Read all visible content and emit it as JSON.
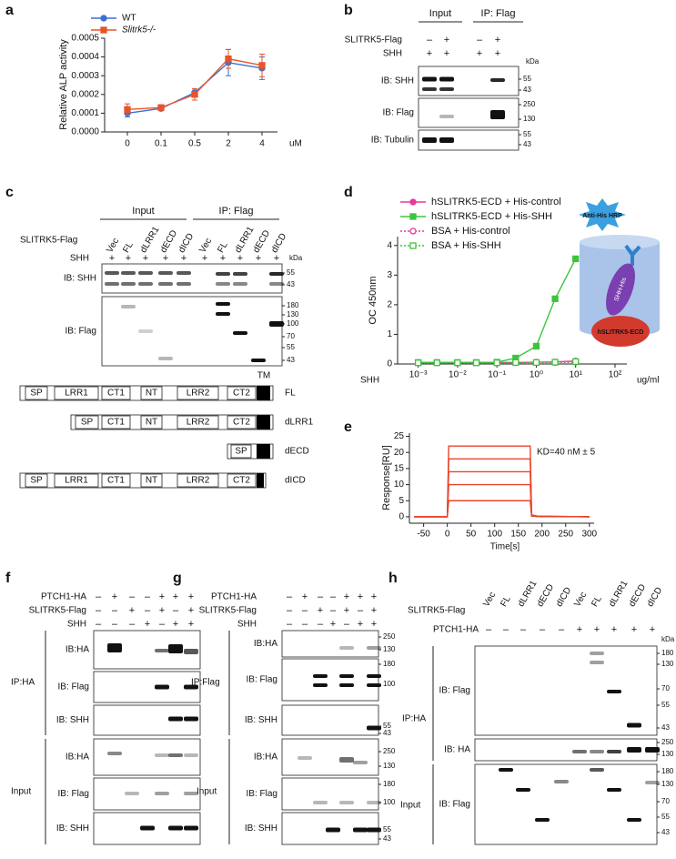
{
  "panel_labels": [
    "a",
    "b",
    "c",
    "d",
    "e",
    "f",
    "g",
    "h"
  ],
  "chart_data": [
    {
      "type": "line",
      "y_label": "Relative ALP activity",
      "x_label": "uM",
      "categories": [
        "0",
        "0.1",
        "0.5",
        "2",
        "4"
      ],
      "series": [
        {
          "name": "WT",
          "color": "#3b6fd4",
          "marker": "circle",
          "values": [
            0.0001,
            0.000125,
            0.00021,
            0.00037,
            0.00034
          ],
          "errors": [
            2e-05,
            1e-05,
            2e-05,
            7e-05,
            6e-05
          ]
        },
        {
          "name": "Slitrk5-/-",
          "color": "#e8542a",
          "marker": "square",
          "values": [
            0.00012,
            0.00013,
            0.0002,
            0.00039,
            0.000355
          ],
          "errors": [
            3e-05,
            1e-05,
            3e-05,
            5e-05,
            6e-05
          ]
        }
      ],
      "ylim": [
        0,
        0.0005
      ],
      "yticks": [
        {
          "value": 0,
          "label": "0.0000"
        },
        {
          "value": 0.0001,
          "label": "0.0001"
        },
        {
          "value": 0.0002,
          "label": "0.0002"
        },
        {
          "value": 0.0003,
          "label": "0.0003"
        },
        {
          "value": 0.0004,
          "label": "0.0004"
        },
        {
          "value": 0.0005,
          "label": "0.0005"
        }
      ],
      "legend": "upper left"
    },
    {
      "type": "line",
      "x_label": "SHH",
      "x_unit": "ug/ml",
      "y_label": "OC 450nm",
      "xscale": "log",
      "x": [
        0.001,
        0.003,
        0.01,
        0.03,
        0.1,
        0.3,
        1,
        3,
        10
      ],
      "series": [
        {
          "name": "hSLITRK5-ECD + His-control",
          "color": "#e8389a",
          "marker": "circle",
          "filled": true,
          "dotted": false,
          "values": [
            0.05,
            0.05,
            0.05,
            0.05,
            0.05,
            0.05,
            0.06,
            0.07,
            0.1
          ]
        },
        {
          "name": "hSLITRK5-ECD + His-SHH",
          "color": "#3cc43c",
          "marker": "square",
          "filled": true,
          "dotted": false,
          "values": [
            0.05,
            0.05,
            0.05,
            0.05,
            0.06,
            0.2,
            0.6,
            2.2,
            3.55
          ]
        },
        {
          "name": "BSA + His-control",
          "color": "#e8389a",
          "marker": "circle",
          "filled": false,
          "dotted": true,
          "values": [
            0.04,
            0.04,
            0.04,
            0.04,
            0.04,
            0.04,
            0.05,
            0.05,
            0.06
          ]
        },
        {
          "name": "BSA + His-SHH",
          "color": "#3cc43c",
          "marker": "square",
          "filled": false,
          "dotted": true,
          "values": [
            0.04,
            0.04,
            0.04,
            0.04,
            0.04,
            0.05,
            0.05,
            0.06,
            0.08
          ]
        }
      ],
      "xlim": [
        0.0003,
        200
      ],
      "xticks": [
        {
          "value": 0.001,
          "label": "10⁻³"
        },
        {
          "value": 0.01,
          "label": "10⁻²"
        },
        {
          "value": 0.1,
          "label": "10⁻¹"
        },
        {
          "value": 1,
          "label": "10⁰"
        },
        {
          "value": 10,
          "label": "10¹"
        },
        {
          "value": 100,
          "label": "10²"
        }
      ],
      "ylim": [
        0,
        4.3
      ],
      "yticks": [
        0,
        1,
        2,
        3,
        4
      ],
      "legend": "upper left"
    },
    {
      "type": "line",
      "x_label": "Time[s]",
      "y_label": "Response[RU]",
      "annotation": "KD=40 nM ± 5",
      "x": [
        -70,
        0,
        3,
        175,
        178,
        190,
        300
      ],
      "series": [
        {
          "color": "#e8452c",
          "values": [
            0,
            0,
            22,
            22,
            0.6,
            0.2,
            0
          ]
        },
        {
          "color": "#e8452c",
          "values": [
            0,
            0,
            18,
            18,
            0.5,
            0.2,
            0
          ]
        },
        {
          "color": "#e8452c",
          "values": [
            0,
            0,
            14,
            14,
            0.4,
            0.1,
            0
          ]
        },
        {
          "color": "#e8452c",
          "values": [
            0,
            0,
            10,
            10,
            0.3,
            0.1,
            0
          ]
        },
        {
          "color": "#e8452c",
          "values": [
            0,
            0,
            5,
            5,
            0.2,
            0.1,
            0
          ]
        }
      ],
      "xlim": [
        -80,
        310
      ],
      "xticks": [
        -50,
        0,
        50,
        100,
        150,
        200,
        250,
        300
      ],
      "ylim": [
        -2,
        26
      ],
      "yticks": [
        0,
        5,
        10,
        15,
        20,
        25
      ]
    }
  ],
  "blot_b": {
    "groups": [
      "Input",
      "IP: Flag"
    ],
    "rows": [
      {
        "label": "SLITRK5-Flag",
        "marks": [
          "–",
          "+",
          "–",
          "+"
        ]
      },
      {
        "label": "SHH",
        "marks": [
          "+",
          "+",
          "+",
          "+"
        ]
      }
    ],
    "kda_label": "kDa",
    "sections": [
      {
        "blots": [
          {
            "label": "IB: SHH",
            "kda": [
              55,
              43
            ]
          },
          {
            "label": "IB: Flag",
            "kda": [
              250,
              130
            ]
          },
          {
            "label": "IB: Tubulin",
            "kda": [
              55,
              43
            ]
          }
        ]
      }
    ]
  },
  "blot_c": {
    "groups": [
      "Input",
      "IP: Flag"
    ],
    "lane_label": "SLITRK5-Flag",
    "lanes": [
      "Vec",
      "FL",
      "dLRR1",
      "dECD",
      "dICD",
      "Vec",
      "FL",
      "dLRR1",
      "dECD",
      "dICD"
    ],
    "rows": [
      {
        "label": "SHH",
        "marks": [
          "+",
          "+",
          "+",
          "+",
          "+",
          "+",
          "+",
          "+",
          "+",
          "+"
        ]
      }
    ],
    "kda_label": "kDa",
    "sections": [
      {
        "blots": [
          {
            "label": "IB: SHH",
            "kda": [
              55,
              43
            ]
          },
          {
            "label": "IB: Flag",
            "kda": [
              180,
              130,
              100,
              70,
              55,
              43
            ]
          }
        ]
      }
    ]
  },
  "domains": {
    "tm": "TM",
    "constructs": [
      {
        "name": "FL",
        "segments": [
          "SP",
          "LRR1",
          "CT1",
          "NT",
          "LRR2",
          "CT2"
        ]
      },
      {
        "name": "dLRR1",
        "segments": [
          "SP",
          "CT1",
          "NT",
          "LRR2",
          "CT2"
        ]
      },
      {
        "name": "dECD",
        "segments": [
          "SP"
        ]
      },
      {
        "name": "dICD",
        "segments": [
          "SP",
          "LRR1",
          "CT1",
          "NT",
          "LRR2",
          "CT2"
        ]
      }
    ]
  },
  "diagram_d": {
    "antibody": "Anti-His HRP",
    "ligand": "SHH-His",
    "receptor": "hSLITRK5-ECD"
  },
  "blot_f": {
    "rows": [
      {
        "label": "PTCH1-HA",
        "marks": [
          "–",
          "+",
          "–",
          "–",
          "+",
          "+",
          "+"
        ]
      },
      {
        "label": "SLITRK5-Flag",
        "marks": [
          "–",
          "–",
          "+",
          "–",
          "+",
          "–",
          "+"
        ]
      },
      {
        "label": "SHH",
        "marks": [
          "–",
          "–",
          "–",
          "+",
          "–",
          "+",
          "+"
        ]
      }
    ],
    "sections": [
      {
        "label": "IP:HA",
        "blots": [
          {
            "label": "IB:HA"
          },
          {
            "label": "IB: Flag"
          },
          {
            "label": "IB: SHH"
          }
        ]
      },
      {
        "label": "Input",
        "blots": [
          {
            "label": "IB:HA"
          },
          {
            "label": "IB: Flag"
          },
          {
            "label": "IB: SHH"
          }
        ]
      }
    ]
  },
  "blot_g": {
    "rows": [
      {
        "label": "PTCH1-HA",
        "marks": [
          "–",
          "+",
          "–",
          "–",
          "+",
          "+",
          "+"
        ]
      },
      {
        "label": "SLITRK5-Flag",
        "marks": [
          "–",
          "–",
          "+",
          "–",
          "+",
          "–",
          "+"
        ]
      },
      {
        "label": "SHH",
        "marks": [
          "–",
          "–",
          "–",
          "+",
          "–",
          "+",
          "+"
        ]
      }
    ],
    "sections": [
      {
        "label": "IP:Flag",
        "blots": [
          {
            "label": "IB:HA",
            "kda": [
              250,
              130
            ]
          },
          {
            "label": "IB: Flag",
            "kda": [
              180,
              100
            ]
          },
          {
            "label": "IB: SHH",
            "kda": [
              55,
              43
            ]
          }
        ]
      },
      {
        "label": "Input",
        "blots": [
          {
            "label": "IB:HA",
            "kda": [
              250,
              130
            ]
          },
          {
            "label": "IB: Flag",
            "kda": [
              180,
              100
            ]
          },
          {
            "label": "IB: SHH",
            "kda": [
              55,
              43
            ]
          }
        ]
      }
    ]
  },
  "blot_h": {
    "lane_label": "SLITRK5-Flag",
    "lanes": [
      "Vec",
      "FL",
      "dLRR1",
      "dECD",
      "dICD",
      "Vec",
      "FL",
      "dLRR1",
      "dECD",
      "dICD"
    ],
    "rows": [
      {
        "label": "PTCH1-HA",
        "marks": [
          "–",
          "–",
          "–",
          "–",
          "–",
          "+",
          "+",
          "+",
          "+",
          "+"
        ]
      }
    ],
    "kda_label": "kDa",
    "sections": [
      {
        "label": "IP:HA",
        "blots": [
          {
            "label": "IB: Flag",
            "kda": [
              180,
              130,
              70,
              55,
              43
            ]
          },
          {
            "label": "IB: HA",
            "kda": [
              250,
              130
            ]
          }
        ]
      },
      {
        "label": "Input",
        "blots": [
          {
            "label": "IB: Flag",
            "kda": [
              180,
              130,
              70,
              55,
              43
            ]
          }
        ]
      }
    ]
  }
}
